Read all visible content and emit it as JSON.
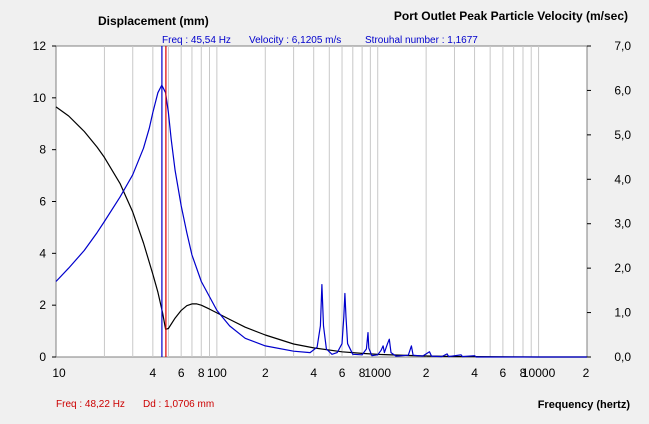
{
  "header": {
    "left_title": "Displacement (mm)",
    "right_title": "Port Outlet Peak Particle Velocity (m/sec)",
    "readout": {
      "freq": "Freq : 45,54 Hz",
      "velocity": "Velocity : 6,1205 m/s",
      "strouhal": "Strouhal number : 1,1677"
    }
  },
  "footer": {
    "freq": "Freq : 48,22 Hz",
    "dd": "Dd : 1,0706 mm",
    "xlabel": "Frequency (hertz)"
  },
  "colors": {
    "background": "#f0f0f0",
    "plot_background": "#ffffff",
    "grid": "#c8c8c8",
    "displacement": "#000000",
    "velocity": "#0000cc",
    "cursor_blue": "#0000cc",
    "cursor_red": "#dd0000",
    "readout_text": "#0000cc",
    "footer_text": "#cc0000"
  },
  "chart_data": {
    "type": "line",
    "x_scale": "log",
    "xlim": [
      10,
      20000
    ],
    "x_tick_labels": [
      {
        "value": 10,
        "label": "10"
      },
      {
        "value": 40,
        "label": "4"
      },
      {
        "value": 60,
        "label": "6"
      },
      {
        "value": 80,
        "label": "8"
      },
      {
        "value": 100,
        "label": "100"
      },
      {
        "value": 200,
        "label": "2"
      },
      {
        "value": 400,
        "label": "4"
      },
      {
        "value": 600,
        "label": "6"
      },
      {
        "value": 800,
        "label": "8"
      },
      {
        "value": 1000,
        "label": "1000"
      },
      {
        "value": 2000,
        "label": "2"
      },
      {
        "value": 4000,
        "label": "4"
      },
      {
        "value": 6000,
        "label": "6"
      },
      {
        "value": 8000,
        "label": "8"
      },
      {
        "value": 10000,
        "label": "10000"
      },
      {
        "value": 20000,
        "label": "2"
      }
    ],
    "y_left": {
      "label": "Displacement (mm)",
      "ylim": [
        0,
        12
      ],
      "ticks": [
        "0",
        "2",
        "4",
        "6",
        "8",
        "10",
        "12"
      ]
    },
    "y_right": {
      "label": "Port Outlet Peak Particle Velocity (m/sec)",
      "ylim": [
        0,
        7
      ],
      "ticks": [
        "0,0",
        "1,0",
        "2,0",
        "3,0",
        "4,0",
        "5,0",
        "6,0",
        "7,0"
      ]
    },
    "grid": true,
    "cursors": [
      {
        "x": 45.54,
        "color": "blue"
      },
      {
        "x": 48.22,
        "color": "red"
      }
    ],
    "series": [
      {
        "axis": "left",
        "color": "black",
        "points": [
          [
            10,
            9.65
          ],
          [
            12,
            9.3
          ],
          [
            15,
            8.7
          ],
          [
            18,
            8.1
          ],
          [
            20,
            7.7
          ],
          [
            25,
            6.7
          ],
          [
            30,
            5.6
          ],
          [
            35,
            4.4
          ],
          [
            40,
            3.2
          ],
          [
            43,
            2.5
          ],
          [
            46,
            1.7
          ],
          [
            48,
            1.07
          ],
          [
            50,
            1.1
          ],
          [
            55,
            1.5
          ],
          [
            60,
            1.8
          ],
          [
            65,
            1.98
          ],
          [
            70,
            2.05
          ],
          [
            75,
            2.05
          ],
          [
            80,
            2.0
          ],
          [
            90,
            1.85
          ],
          [
            100,
            1.7
          ],
          [
            120,
            1.45
          ],
          [
            150,
            1.15
          ],
          [
            200,
            0.85
          ],
          [
            300,
            0.5
          ],
          [
            400,
            0.35
          ],
          [
            600,
            0.2
          ],
          [
            800,
            0.14
          ],
          [
            1000,
            0.1
          ],
          [
            1500,
            0.06
          ],
          [
            2000,
            0.04
          ],
          [
            3000,
            0.02
          ],
          [
            5000,
            0.01
          ],
          [
            10000,
            0.0
          ],
          [
            20000,
            0.0
          ]
        ]
      },
      {
        "axis": "right",
        "color": "blue",
        "points": [
          [
            10,
            1.7
          ],
          [
            12,
            2.0
          ],
          [
            15,
            2.4
          ],
          [
            18,
            2.8
          ],
          [
            20,
            3.05
          ],
          [
            25,
            3.6
          ],
          [
            30,
            4.1
          ],
          [
            35,
            4.7
          ],
          [
            38,
            5.15
          ],
          [
            40,
            5.5
          ],
          [
            43,
            5.95
          ],
          [
            45.5,
            6.12
          ],
          [
            48,
            5.95
          ],
          [
            50,
            5.5
          ],
          [
            52,
            4.9
          ],
          [
            55,
            4.2
          ],
          [
            60,
            3.4
          ],
          [
            65,
            2.8
          ],
          [
            70,
            2.3
          ],
          [
            80,
            1.7
          ],
          [
            100,
            1.05
          ],
          [
            120,
            0.7
          ],
          [
            150,
            0.42
          ],
          [
            200,
            0.25
          ],
          [
            300,
            0.13
          ],
          [
            380,
            0.1
          ],
          [
            420,
            0.22
          ],
          [
            440,
            0.7
          ],
          [
            450,
            1.63
          ],
          [
            460,
            0.7
          ],
          [
            480,
            0.18
          ],
          [
            520,
            0.06
          ],
          [
            560,
            0.1
          ],
          [
            600,
            0.3
          ],
          [
            615,
            0.9
          ],
          [
            625,
            1.43
          ],
          [
            635,
            0.9
          ],
          [
            650,
            0.3
          ],
          [
            700,
            0.06
          ],
          [
            800,
            0.05
          ],
          [
            850,
            0.18
          ],
          [
            870,
            0.55
          ],
          [
            880,
            0.2
          ],
          [
            920,
            0.03
          ],
          [
            1000,
            0.05
          ],
          [
            1050,
            0.15
          ],
          [
            1080,
            0.25
          ],
          [
            1100,
            0.1
          ],
          [
            1150,
            0.3
          ],
          [
            1180,
            0.4
          ],
          [
            1210,
            0.1
          ],
          [
            1300,
            0.02
          ],
          [
            1550,
            0.04
          ],
          [
            1620,
            0.25
          ],
          [
            1660,
            0.04
          ],
          [
            1900,
            0.02
          ],
          [
            2100,
            0.12
          ],
          [
            2160,
            0.02
          ],
          [
            2500,
            0.01
          ],
          [
            2700,
            0.07
          ],
          [
            2760,
            0.01
          ],
          [
            3300,
            0.05
          ],
          [
            3360,
            0.01
          ],
          [
            4000,
            0.03
          ],
          [
            4100,
            0.0
          ],
          [
            5000,
            0.0
          ],
          [
            10000,
            0.0
          ],
          [
            20000,
            0.0
          ]
        ]
      }
    ]
  }
}
